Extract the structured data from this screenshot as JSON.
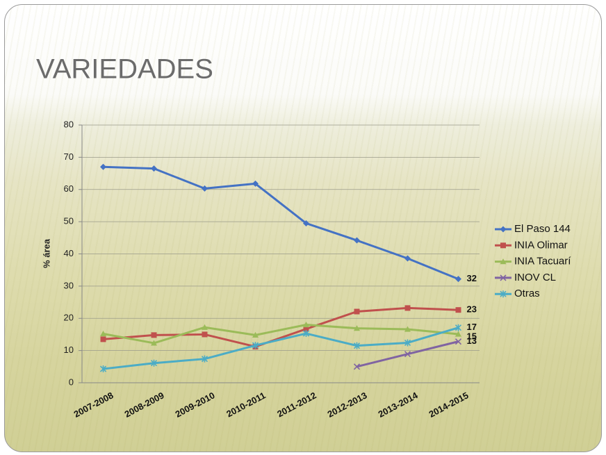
{
  "chart_data": {
    "type": "line",
    "title": "VARIEDADES",
    "y_label": "% área",
    "categories": [
      "2007-2008",
      "2008-2009",
      "2009-2010",
      "2010-2011",
      "2011-2012",
      "2012-2013",
      "2013-2014",
      "2014-2015"
    ],
    "series": [
      {
        "name": "El Paso 144",
        "color": "#4472c4",
        "marker": "diamond",
        "values": [
          67,
          66.5,
          60.3,
          61.8,
          49.5,
          44.2,
          38.6,
          32.2
        ],
        "value_labels": [
          null,
          null,
          null,
          null,
          null,
          null,
          null,
          "32"
        ]
      },
      {
        "name": "INIA Olimar",
        "color": "#c0504d",
        "marker": "square",
        "values": [
          13.5,
          14.8,
          15,
          11.2,
          16.7,
          22.1,
          23.2,
          22.6
        ],
        "value_labels": [
          null,
          null,
          null,
          null,
          null,
          null,
          null,
          "23"
        ]
      },
      {
        "name": "INIA Tacuarí",
        "color": "#9bbb59",
        "marker": "triangle",
        "values": [
          15.2,
          12.3,
          17.2,
          14.8,
          18,
          16.9,
          16.6,
          15.1
        ],
        "value_labels": [
          null,
          null,
          null,
          null,
          null,
          null,
          null,
          "15"
        ]
      },
      {
        "name": "INOV CL",
        "color": "#8064a2",
        "marker": "x",
        "values": [
          null,
          null,
          null,
          null,
          null,
          5,
          8.9,
          12.8
        ],
        "value_labels": [
          null,
          null,
          null,
          null,
          null,
          null,
          null,
          "13"
        ]
      },
      {
        "name": "Otras",
        "color": "#4bacc6",
        "marker": "star",
        "values": [
          4.3,
          6.1,
          7.4,
          11.6,
          15.3,
          11.5,
          12.4,
          17.1
        ],
        "value_labels": [
          null,
          null,
          null,
          null,
          null,
          null,
          null,
          "17"
        ]
      }
    ],
    "ylim": [
      0,
      80
    ],
    "yticks": [
      0,
      10,
      20,
      30,
      40,
      50,
      60,
      70,
      80
    ],
    "grid": true,
    "legend": "right"
  }
}
